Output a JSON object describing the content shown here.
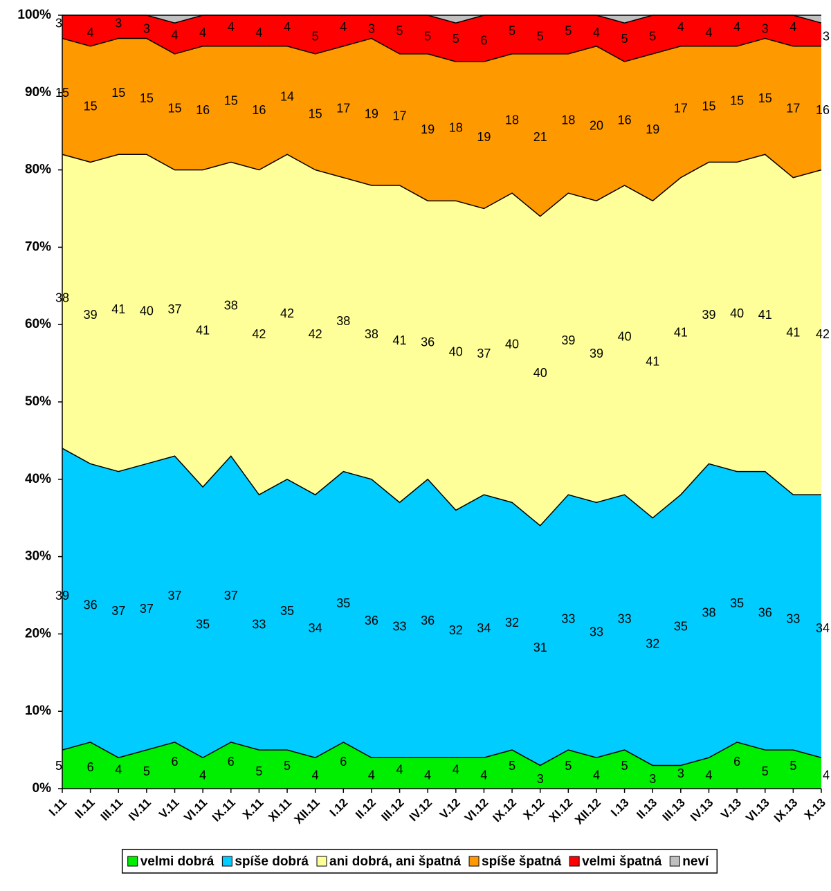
{
  "chart_data": {
    "type": "stacked_area",
    "categories": [
      "I.11",
      "II.11",
      "III.11",
      "IV.11",
      "V.11",
      "VI.11",
      "IX.11",
      "X.11",
      "XI.11",
      "XII.11",
      "I.12",
      "II.12",
      "III.12",
      "IV.12",
      "V.12",
      "VI.12",
      "IX.12",
      "X.12",
      "XI.12",
      "XII.12",
      "I.13",
      "II.13",
      "III.13",
      "IV.13",
      "V.13",
      "VI.13",
      "IX.13",
      "X.13"
    ],
    "series": [
      {
        "name": "velmi dobrá",
        "color": "#00ee00",
        "data_labels": true,
        "values": [
          5,
          6,
          4,
          5,
          6,
          4,
          6,
          5,
          5,
          4,
          6,
          4,
          4,
          4,
          4,
          4,
          5,
          3,
          5,
          4,
          5,
          3,
          3,
          4,
          6,
          5,
          5,
          4
        ]
      },
      {
        "name": "spíše dobrá",
        "color": "#00ccff",
        "data_labels": true,
        "values": [
          39,
          36,
          37,
          37,
          37,
          35,
          37,
          33,
          35,
          34,
          35,
          36,
          33,
          36,
          32,
          34,
          32,
          31,
          33,
          33,
          33,
          32,
          35,
          38,
          35,
          36,
          33,
          34
        ]
      },
      {
        "name": "ani dobrá, ani špatná",
        "color": "#ffff99",
        "data_labels": true,
        "values": [
          38,
          39,
          41,
          40,
          37,
          41,
          38,
          42,
          42,
          42,
          38,
          38,
          41,
          36,
          40,
          37,
          40,
          40,
          39,
          39,
          40,
          41,
          41,
          39,
          40,
          41,
          41,
          42
        ]
      },
      {
        "name": "spíše špatná",
        "color": "#ff9900",
        "data_labels": true,
        "values": [
          15,
          15,
          15,
          15,
          15,
          16,
          15,
          16,
          14,
          15,
          17,
          19,
          17,
          19,
          18,
          19,
          18,
          21,
          18,
          20,
          16,
          19,
          17,
          15,
          15,
          15,
          17,
          16
        ]
      },
      {
        "name": "velmi špatná",
        "color": "#ff0000",
        "data_labels": true,
        "values": [
          3,
          4,
          3,
          3,
          4,
          4,
          4,
          4,
          4,
          5,
          4,
          3,
          5,
          5,
          5,
          6,
          5,
          5,
          5,
          4,
          5,
          5,
          4,
          4,
          4,
          3,
          4,
          3
        ]
      },
      {
        "name": "neví",
        "color": "#c0c0c0",
        "data_labels": false,
        "values": [
          0,
          0,
          0,
          0,
          1,
          0,
          0,
          0,
          0,
          0,
          0,
          0,
          0,
          0,
          1,
          0,
          0,
          0,
          0,
          0,
          1,
          0,
          0,
          0,
          0,
          0,
          0,
          1
        ]
      }
    ],
    "ylim": [
      0,
      100
    ],
    "yticks": [
      {
        "value": 0,
        "label": "0%"
      },
      {
        "value": 10,
        "label": "10%"
      },
      {
        "value": 20,
        "label": "20%"
      },
      {
        "value": 30,
        "label": "30%"
      },
      {
        "value": 40,
        "label": "40%"
      },
      {
        "value": 50,
        "label": "50%"
      },
      {
        "value": 60,
        "label": "60%"
      },
      {
        "value": 70,
        "label": "70%"
      },
      {
        "value": 80,
        "label": "80%"
      },
      {
        "value": 90,
        "label": "90%"
      },
      {
        "value": 100,
        "label": "100%"
      }
    ],
    "grid": false,
    "legend": "bottom"
  }
}
